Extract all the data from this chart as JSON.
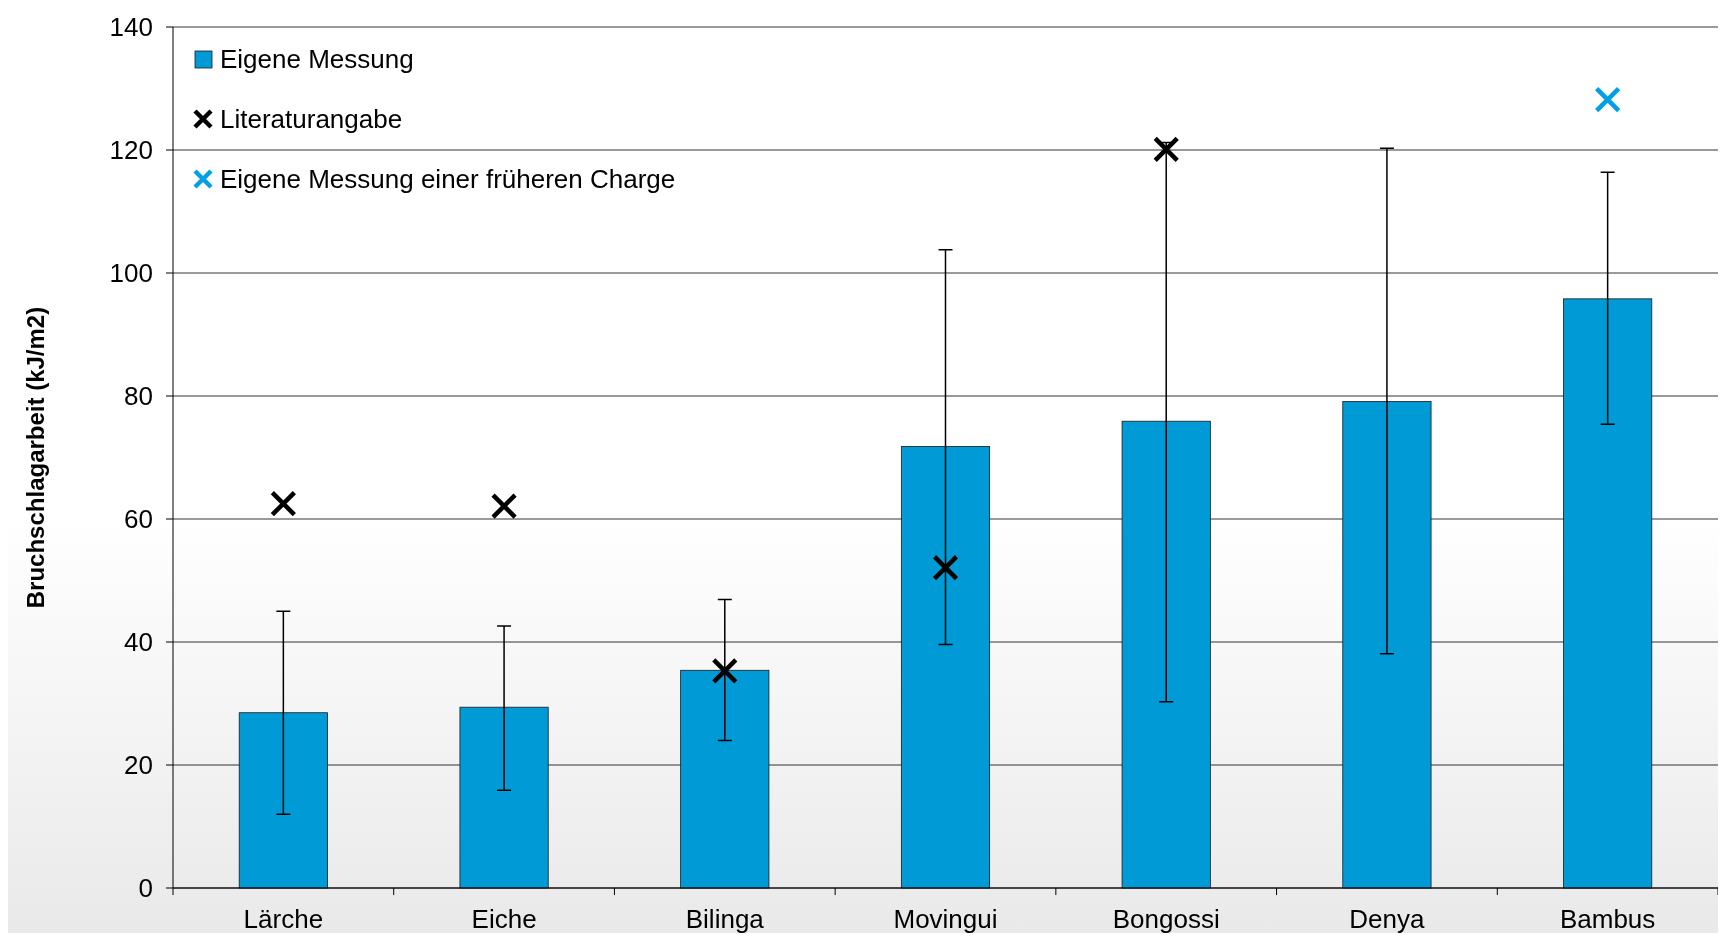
{
  "chart_data": {
    "type": "bar",
    "ylabel": "Bruchschlagarbeit (kJ/m2)",
    "categories": [
      "Lärche",
      "Eiche",
      "Bilinga",
      "Movingui",
      "Bongossi",
      "Denya",
      "Bambus"
    ],
    "series": [
      {
        "name": "Eigene Messung",
        "color": "#009bd7",
        "values": [
          28.5,
          29.4,
          35.4,
          71.8,
          75.9,
          79.1,
          95.8
        ],
        "errors": [
          [
            12,
            45
          ],
          [
            15.9,
            42.6
          ],
          [
            24,
            46.9
          ],
          [
            39.6,
            103.8
          ],
          [
            30.3,
            121.2
          ],
          [
            38.1,
            120.3
          ],
          [
            75.4,
            116.4
          ]
        ]
      },
      {
        "name": "Literaturangabe",
        "type": "scatter",
        "color": "#000000",
        "x": [
          "Lärche",
          "Eiche",
          "Bilinga",
          "Movingui",
          "Bongossi"
        ],
        "values": [
          62.5,
          62.1,
          35.3,
          52.1,
          120.1
        ]
      },
      {
        "name": "Eigene Messung einer früheren Charge",
        "type": "scatter",
        "color": "#00a0e6",
        "x": [
          "Bambus"
        ],
        "values": [
          128.2
        ]
      }
    ],
    "ylim": [
      0,
      140
    ],
    "yticks": [
      0,
      20,
      40,
      60,
      80,
      100,
      120,
      140
    ],
    "grid": "y",
    "legend": "top left",
    "marker": "cross"
  }
}
